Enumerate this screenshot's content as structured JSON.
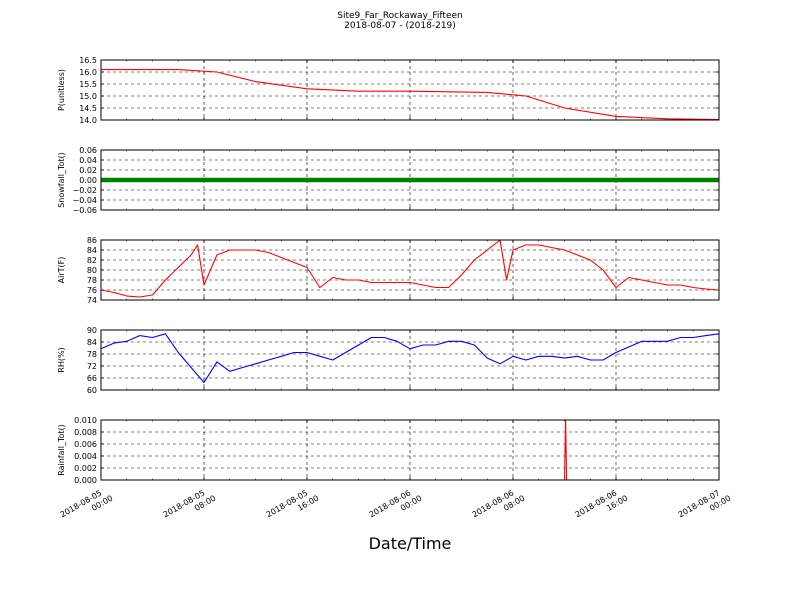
{
  "figure": {
    "title": "Site9_Far_Rockaway_Fifteen",
    "subtitle": "2018-08-07 - (2018-219)",
    "xlabel": "Date/Time"
  },
  "chart_data": [
    {
      "type": "line",
      "ylabel": "P(unitless)",
      "color": "#ff0000",
      "ylim": [
        14.0,
        16.5
      ],
      "yticks": [
        "14.0",
        "14.5",
        "15.0",
        "15.5",
        "16.0",
        "16.5"
      ],
      "grid": true,
      "xlim": [
        "2018-08-05 00:00",
        "2018-08-07 00:00"
      ],
      "x": [
        "2018-08-05 00:00",
        "2018-08-05 06:00",
        "2018-08-05 09:00",
        "2018-08-05 12:00",
        "2018-08-05 16:00",
        "2018-08-05 20:00",
        "2018-08-06 00:00",
        "2018-08-06 06:00",
        "2018-08-06 09:00",
        "2018-08-06 12:00",
        "2018-08-06 16:00",
        "2018-08-06 20:00",
        "2018-08-07 00:00"
      ],
      "values": [
        16.1,
        16.1,
        16.0,
        15.6,
        15.3,
        15.2,
        15.2,
        15.15,
        15.0,
        14.5,
        14.15,
        14.05,
        14.02
      ]
    },
    {
      "type": "scatter",
      "ylabel": "Snowfall_Tot()",
      "color": "#008000",
      "ylim": [
        -0.06,
        0.06
      ],
      "yticks": [
        "−0.06",
        "−0.04",
        "−0.02",
        "0.00",
        "0.02",
        "0.04",
        "0.06"
      ],
      "grid": true,
      "xlim": [
        "2018-08-05 00:00",
        "2018-08-07 00:00"
      ],
      "x": [
        "2018-08-05 00:00",
        "2018-08-07 00:00"
      ],
      "values": [
        0.0,
        0.0
      ]
    },
    {
      "type": "line",
      "ylabel": "AirT(F)",
      "color": "#ff0000",
      "ylim": [
        74,
        86
      ],
      "yticks": [
        "74",
        "76",
        "78",
        "80",
        "82",
        "84",
        "86"
      ],
      "grid": true,
      "xlim": [
        "2018-08-05 00:00",
        "2018-08-07 00:00"
      ],
      "x": [
        "2018-08-05 00:00",
        "2018-08-05 01:00",
        "2018-08-05 02:00",
        "2018-08-05 03:00",
        "2018-08-05 04:00",
        "2018-08-05 05:00",
        "2018-08-05 06:00",
        "2018-08-05 07:00",
        "2018-08-05 07:30",
        "2018-08-05 08:00",
        "2018-08-05 09:00",
        "2018-08-05 10:00",
        "2018-08-05 11:00",
        "2018-08-05 12:00",
        "2018-08-05 13:00",
        "2018-08-05 14:00",
        "2018-08-05 15:00",
        "2018-08-05 16:00",
        "2018-08-05 17:00",
        "2018-08-05 18:00",
        "2018-08-05 19:00",
        "2018-08-05 20:00",
        "2018-08-05 21:00",
        "2018-08-05 22:00",
        "2018-08-05 23:00",
        "2018-08-06 00:00",
        "2018-08-06 01:00",
        "2018-08-06 02:00",
        "2018-08-06 03:00",
        "2018-08-06 04:00",
        "2018-08-06 05:00",
        "2018-08-06 06:00",
        "2018-08-06 07:00",
        "2018-08-06 07:30",
        "2018-08-06 08:00",
        "2018-08-06 09:00",
        "2018-08-06 10:00",
        "2018-08-06 11:00",
        "2018-08-06 12:00",
        "2018-08-06 13:00",
        "2018-08-06 14:00",
        "2018-08-06 15:00",
        "2018-08-06 16:00",
        "2018-08-06 17:00",
        "2018-08-06 18:00",
        "2018-08-06 19:00",
        "2018-08-06 20:00",
        "2018-08-06 21:00",
        "2018-08-06 22:00",
        "2018-08-06 23:00",
        "2018-08-07 00:00"
      ],
      "values": [
        76,
        75.5,
        74.8,
        74.6,
        75,
        78,
        80.5,
        83,
        85,
        77,
        83,
        84,
        84,
        84,
        83.5,
        82.5,
        81.5,
        80.5,
        76.5,
        78.5,
        78,
        78,
        77.5,
        77.5,
        77.5,
        77.5,
        77,
        76.5,
        76.5,
        79,
        82,
        84,
        86,
        78,
        84,
        85,
        85,
        84.5,
        84,
        83,
        82,
        80,
        76.5,
        78.5,
        78,
        77.5,
        77,
        77,
        76.5,
        76.2,
        76
      ]
    },
    {
      "type": "line",
      "ylabel": "RH(%)",
      "color": "#0000ff",
      "ylim": [
        60,
        92
      ],
      "yticks": [
        "60",
        "66",
        "72",
        "78",
        "84",
        "90"
      ],
      "grid": true,
      "xlim": [
        "2018-08-05 00:00",
        "2018-08-07 00:00"
      ],
      "x": [
        "2018-08-05 00:00",
        "2018-08-05 01:00",
        "2018-08-05 02:00",
        "2018-08-05 03:00",
        "2018-08-05 04:00",
        "2018-08-05 05:00",
        "2018-08-05 06:00",
        "2018-08-05 07:00",
        "2018-08-05 08:00",
        "2018-08-05 09:00",
        "2018-08-05 10:00",
        "2018-08-05 11:00",
        "2018-08-05 12:00",
        "2018-08-05 13:00",
        "2018-08-05 14:00",
        "2018-08-05 15:00",
        "2018-08-05 16:00",
        "2018-08-05 17:00",
        "2018-08-05 18:00",
        "2018-08-05 19:00",
        "2018-08-05 20:00",
        "2018-08-05 21:00",
        "2018-08-05 22:00",
        "2018-08-05 23:00",
        "2018-08-06 00:00",
        "2018-08-06 01:00",
        "2018-08-06 02:00",
        "2018-08-06 03:00",
        "2018-08-06 04:00",
        "2018-08-06 05:00",
        "2018-08-06 06:00",
        "2018-08-06 07:00",
        "2018-08-06 08:00",
        "2018-08-06 09:00",
        "2018-08-06 10:00",
        "2018-08-06 11:00",
        "2018-08-06 12:00",
        "2018-08-06 13:00",
        "2018-08-06 14:00",
        "2018-08-06 15:00",
        "2018-08-06 16:00",
        "2018-08-06 17:00",
        "2018-08-06 18:00",
        "2018-08-06 19:00",
        "2018-08-06 20:00",
        "2018-08-06 21:00",
        "2018-08-06 22:00",
        "2018-08-06 23:00",
        "2018-08-07 00:00"
      ],
      "values": [
        82,
        85,
        86,
        89,
        88,
        90,
        80,
        72,
        64,
        75,
        70,
        72,
        74,
        76,
        78,
        80,
        80,
        78,
        76,
        80,
        84,
        88,
        88,
        86,
        82,
        84,
        84,
        86,
        86,
        84,
        77,
        74,
        78,
        76,
        78,
        78,
        77,
        78,
        76,
        76,
        80,
        83,
        86,
        86,
        86,
        88,
        88,
        89,
        90
      ]
    },
    {
      "type": "line",
      "ylabel": "Rainfall_Tot()",
      "color": "#ff0000",
      "ylim": [
        0.0,
        0.01
      ],
      "yticks": [
        "0.000",
        "0.002",
        "0.004",
        "0.006",
        "0.008",
        "0.010"
      ],
      "grid": true,
      "xlim": [
        "2018-08-05 00:00",
        "2018-08-07 00:00"
      ],
      "x": [
        "2018-08-05 00:00",
        "2018-08-06 12:00",
        "2018-08-06 12:05",
        "2018-08-06 12:10",
        "2018-08-07 00:00"
      ],
      "values": [
        0,
        0,
        0.01,
        0,
        0
      ]
    }
  ],
  "xaxis": {
    "ticks": [
      {
        "value": "2018-08-05 00:00",
        "line1": "2018-08-05",
        "line2": "00:00"
      },
      {
        "value": "2018-08-05 08:00",
        "line1": "2018-08-05",
        "line2": "08:00"
      },
      {
        "value": "2018-08-05 16:00",
        "line1": "2018-08-05",
        "line2": "16:00"
      },
      {
        "value": "2018-08-06 00:00",
        "line1": "2018-08-06",
        "line2": "00:00"
      },
      {
        "value": "2018-08-06 08:00",
        "line1": "2018-08-06",
        "line2": "08:00"
      },
      {
        "value": "2018-08-06 16:00",
        "line1": "2018-08-06",
        "line2": "16:00"
      },
      {
        "value": "2018-08-07 00:00",
        "line1": "2018-08-07",
        "line2": "00:00"
      }
    ]
  }
}
